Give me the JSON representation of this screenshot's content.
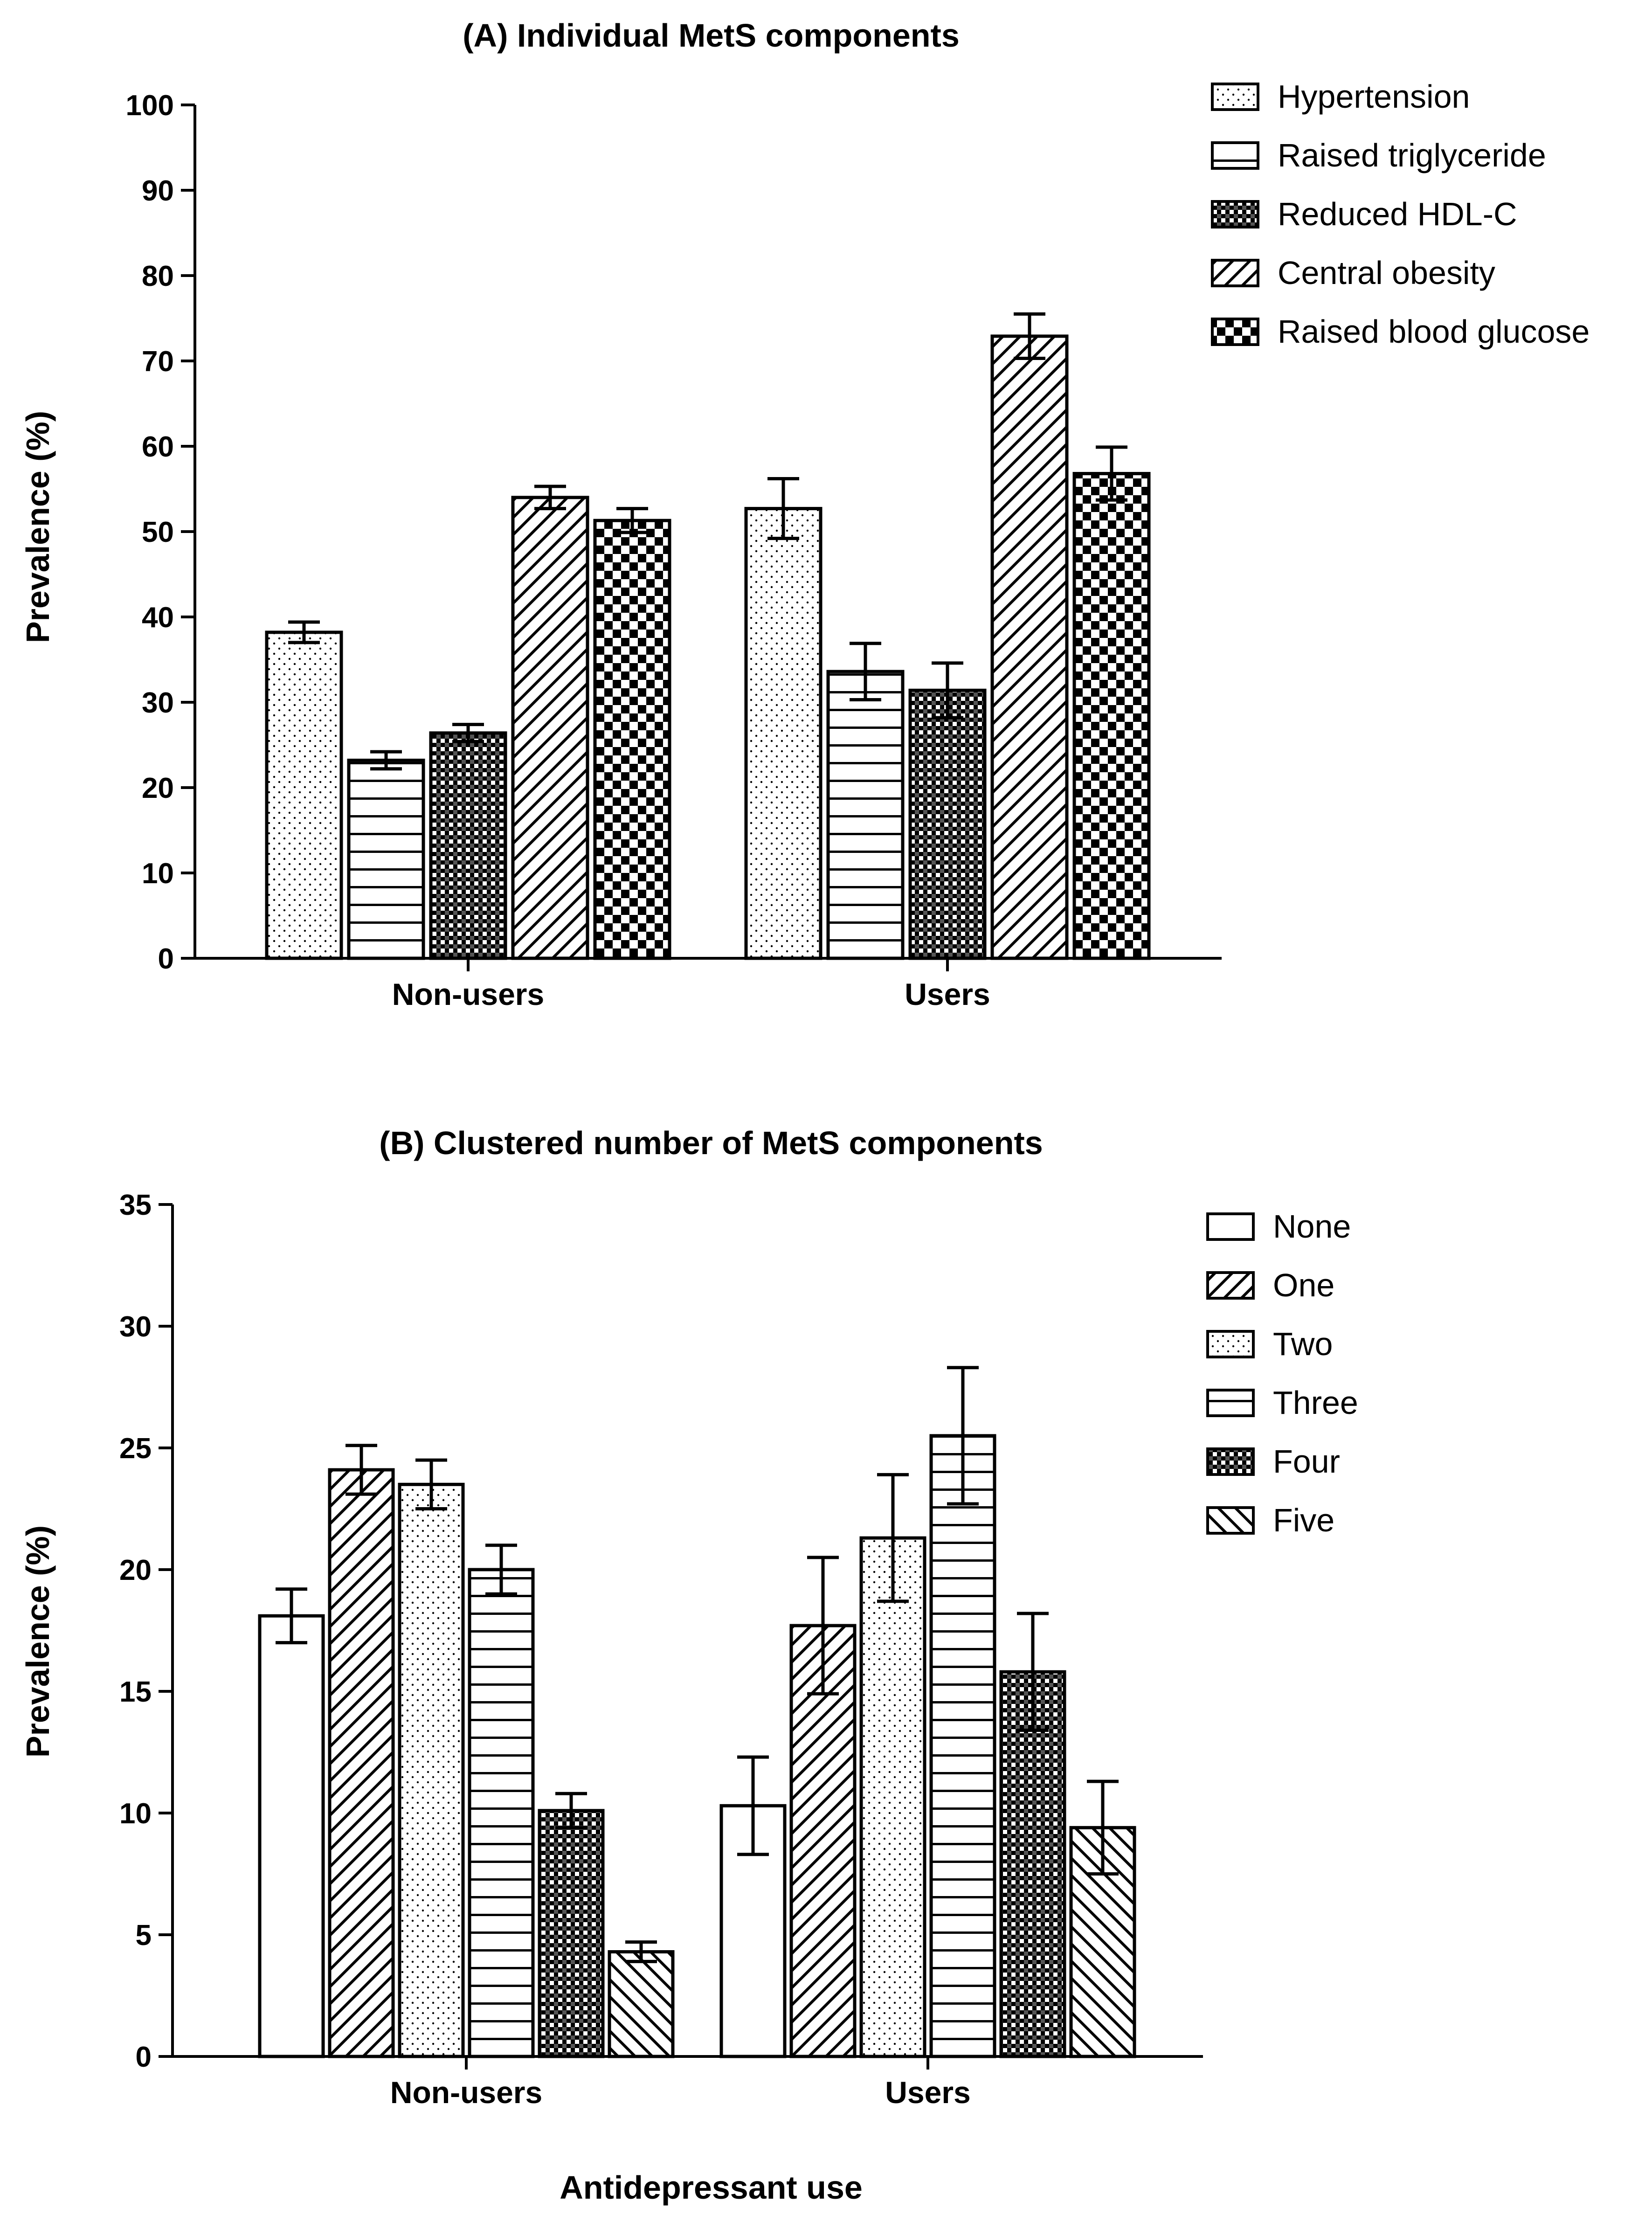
{
  "chart_data": [
    {
      "type": "bar",
      "title": "(A) Individual MetS components",
      "xlabel": "",
      "ylabel": "Prevalence (%)",
      "ylim": [
        0,
        100
      ],
      "yticks": [
        0,
        10,
        20,
        30,
        40,
        50,
        60,
        70,
        80,
        90,
        100
      ],
      "categories": [
        "Non-users",
        "Users"
      ],
      "grid": false,
      "legend_position": "top-right",
      "series": [
        {
          "name": "Hypertension",
          "pattern": "dots",
          "values": [
            38.2,
            52.7
          ],
          "errors": [
            1.2,
            3.5
          ]
        },
        {
          "name": "Raised triglyceride",
          "pattern": "hlines",
          "values": [
            23.2,
            33.6
          ],
          "errors": [
            1.0,
            3.3
          ]
        },
        {
          "name": "Reduced HDL-C",
          "pattern": "fine-check",
          "values": [
            26.4,
            31.4
          ],
          "errors": [
            1.0,
            3.2
          ]
        },
        {
          "name": "Central obesity",
          "pattern": "diag-up",
          "values": [
            54.0,
            72.9
          ],
          "errors": [
            1.3,
            2.6
          ]
        },
        {
          "name": "Raised blood glucose",
          "pattern": "checker",
          "values": [
            51.3,
            56.8
          ],
          "errors": [
            1.4,
            3.1
          ]
        }
      ]
    },
    {
      "type": "bar",
      "title": "(B) Clustered number of MetS components",
      "xlabel": "Antidepressant use",
      "ylabel": "Prevalence (%)",
      "ylim": [
        0,
        35
      ],
      "yticks": [
        0,
        5,
        10,
        15,
        20,
        25,
        30,
        35
      ],
      "categories": [
        "Non-users",
        "Users"
      ],
      "grid": false,
      "legend_position": "top-right",
      "series": [
        {
          "name": "None",
          "pattern": "blank",
          "values": [
            18.1,
            10.3
          ],
          "errors": [
            1.1,
            2.0
          ]
        },
        {
          "name": "One",
          "pattern": "diag-up",
          "values": [
            24.1,
            17.7
          ],
          "errors": [
            1.0,
            2.8
          ]
        },
        {
          "name": "Two",
          "pattern": "dots",
          "values": [
            23.5,
            21.3
          ],
          "errors": [
            1.0,
            2.6
          ]
        },
        {
          "name": "Three",
          "pattern": "hlines",
          "values": [
            20.0,
            25.5
          ],
          "errors": [
            1.0,
            2.8
          ]
        },
        {
          "name": "Four",
          "pattern": "fine-check",
          "values": [
            10.1,
            15.8
          ],
          "errors": [
            0.7,
            2.4
          ]
        },
        {
          "name": "Five",
          "pattern": "diag-down",
          "values": [
            4.3,
            9.4
          ],
          "errors": [
            0.4,
            1.9
          ]
        }
      ]
    }
  ]
}
